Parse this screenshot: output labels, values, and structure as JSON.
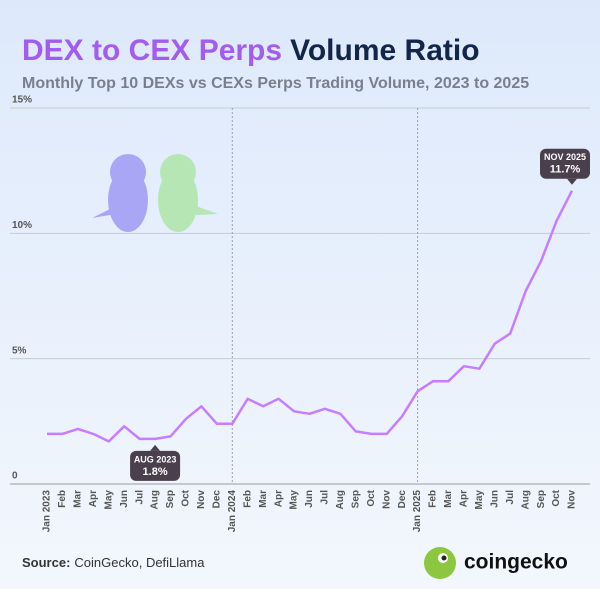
{
  "chart_data": {
    "type": "line",
    "title": [
      {
        "text": "DEX to CEX Perps",
        "color": "#a35cf0"
      },
      {
        "text": "Volume Ratio",
        "color": "#14254a"
      }
    ],
    "subtitle": "Monthly Top 10 DEXs vs CEXs Perps Trading Volume, 2023 to 2025",
    "categories": [
      "Jan 2023",
      "Feb",
      "Mar",
      "Apr",
      "May",
      "Jun",
      "Jul",
      "Aug",
      "Sep",
      "Oct",
      "Nov",
      "Dec",
      "Jan 2024",
      "Feb",
      "Mar",
      "Apr",
      "May",
      "Jun",
      "Jul",
      "Aug",
      "Sep",
      "Oct",
      "Nov",
      "Dec",
      "Jan 2025",
      "Feb",
      "Mar",
      "Apr",
      "May",
      "Jun",
      "Jul",
      "Aug",
      "Sep",
      "Oct",
      "Nov"
    ],
    "series": [
      {
        "name": "DEX to CEX Perps Volume Ratio",
        "color": "#c77dff",
        "values": [
          2.0,
          2.0,
          2.2,
          2.0,
          1.7,
          2.3,
          1.8,
          1.8,
          1.9,
          2.6,
          3.1,
          2.4,
          2.4,
          3.4,
          3.1,
          3.4,
          2.9,
          2.8,
          3.0,
          2.8,
          2.1,
          2.0,
          2.0,
          2.7,
          3.7,
          4.1,
          4.1,
          4.7,
          4.6,
          5.6,
          6.0,
          7.7,
          8.9,
          10.5,
          11.7
        ],
        "value_labels": [
          null,
          null,
          null,
          null,
          null,
          null,
          null,
          "1.8%",
          null,
          null,
          null,
          null,
          null,
          null,
          null,
          null,
          null,
          null,
          null,
          null,
          null,
          null,
          null,
          null,
          null,
          null,
          null,
          null,
          null,
          null,
          null,
          null,
          null,
          null,
          "11.7%"
        ]
      }
    ],
    "annotations": [
      "AUG 2023",
      "NOV 2025"
    ],
    "ylim": [
      0,
      15
    ],
    "yticks": [
      0,
      {
        "value": 5,
        "label": "5%"
      },
      {
        "value": 10,
        "label": "10%"
      },
      {
        "value": 15,
        "label": "15%"
      }
    ],
    "grid": true,
    "source_label": "Source:",
    "source": "CoinGecko, DefiLlama",
    "brand": "coingecko"
  }
}
